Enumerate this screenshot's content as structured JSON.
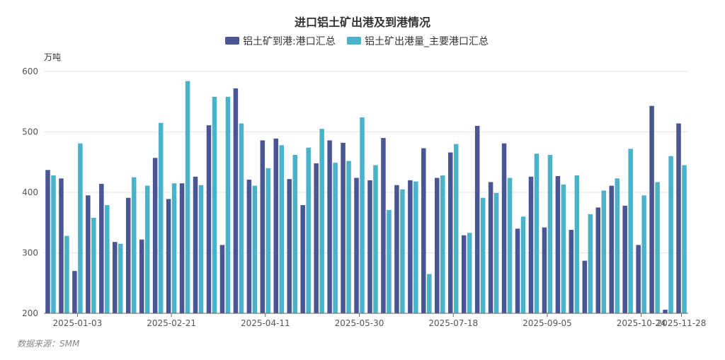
{
  "chart_data": {
    "type": "bar",
    "title": "进口铝土矿出港及到港情况",
    "unit": "万吨",
    "source": "数据来源：SMM",
    "ylim": [
      200,
      600
    ],
    "yticks": [
      200,
      300,
      400,
      500,
      600
    ],
    "xtick_labels": [
      {
        "index": 2,
        "label": "2025-01-03"
      },
      {
        "index": 9,
        "label": "2025-02-21"
      },
      {
        "index": 16,
        "label": "2025-04-11"
      },
      {
        "index": 23,
        "label": "2025-05-30"
      },
      {
        "index": 30,
        "label": "2025-07-18"
      },
      {
        "index": 37,
        "label": "2025-09-05"
      },
      {
        "index": 44,
        "label": "2025-10-24"
      },
      {
        "index": 47,
        "label": "2025-11-28"
      }
    ],
    "series": [
      {
        "name": "铝土矿到港:港口汇总",
        "color": "#4a5593",
        "values": [
          437,
          423,
          270,
          395,
          414,
          318,
          391,
          322,
          457,
          389,
          415,
          426,
          511,
          313,
          572,
          421,
          486,
          489,
          422,
          379,
          448,
          486,
          482,
          424,
          420,
          490,
          412,
          420,
          473,
          424,
          466,
          329,
          510,
          417,
          481,
          340,
          426,
          342,
          427,
          338,
          287,
          375,
          411,
          378,
          313,
          543,
          206,
          514
        ]
      },
      {
        "name": "铝土矿出港量_主要港口汇总",
        "color": "#4ab2c9",
        "values": [
          428,
          328,
          481,
          358,
          379,
          315,
          425,
          411,
          515,
          415,
          584,
          412,
          558,
          558,
          514,
          411,
          440,
          478,
          462,
          474,
          505,
          449,
          452,
          524,
          445,
          371,
          405,
          418,
          265,
          428,
          480,
          333,
          391,
          399,
          424,
          360,
          464,
          462,
          413,
          428,
          364,
          403,
          423,
          472,
          395,
          417,
          460,
          445
        ]
      }
    ]
  }
}
